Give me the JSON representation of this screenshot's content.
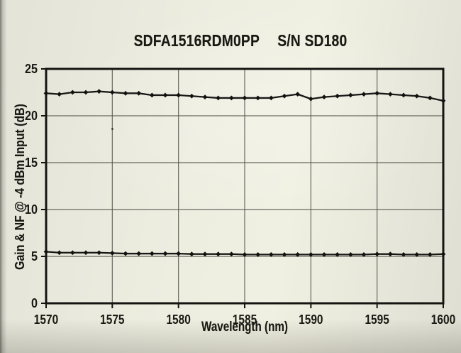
{
  "colors": {
    "paper": "#ebebdf",
    "ink": "#1b1813",
    "grid": "#55514a",
    "frame": "#161310",
    "line": "#1b1916",
    "marker": "#131110"
  },
  "chart_data": {
    "type": "line",
    "title": "SDFA1516RDM0PP",
    "serial": "S/N SD180",
    "xlabel": "Wavelength (nm)",
    "ylabel": "Gain & NF @ -4 dBm Input (dB)",
    "xlim": [
      1570,
      1600
    ],
    "ylim": [
      0,
      25
    ],
    "x_ticks": [
      1570,
      1575,
      1580,
      1585,
      1590,
      1595,
      1600
    ],
    "y_ticks": [
      0,
      5,
      10,
      15,
      20,
      25
    ],
    "grid": "on",
    "legend": "none",
    "marker": "diamond",
    "x": [
      1570,
      1571,
      1572,
      1573,
      1574,
      1575,
      1576,
      1577,
      1578,
      1579,
      1580,
      1581,
      1582,
      1583,
      1584,
      1585,
      1586,
      1587,
      1588,
      1589,
      1590,
      1591,
      1592,
      1593,
      1594,
      1595,
      1596,
      1597,
      1598,
      1599,
      1600
    ],
    "series": [
      {
        "name": "Gain",
        "values": [
          22.4,
          22.3,
          22.5,
          22.5,
          22.6,
          22.5,
          22.4,
          22.4,
          22.2,
          22.2,
          22.2,
          22.1,
          22.0,
          21.9,
          21.9,
          21.9,
          21.9,
          21.9,
          22.1,
          22.3,
          21.8,
          22.0,
          22.1,
          22.2,
          22.3,
          22.4,
          22.3,
          22.2,
          22.1,
          21.9,
          21.6
        ]
      },
      {
        "name": "NF",
        "values": [
          5.5,
          5.4,
          5.4,
          5.4,
          5.4,
          5.35,
          5.3,
          5.3,
          5.3,
          5.3,
          5.3,
          5.25,
          5.25,
          5.25,
          5.25,
          5.2,
          5.2,
          5.2,
          5.2,
          5.2,
          5.2,
          5.2,
          5.2,
          5.2,
          5.2,
          5.25,
          5.25,
          5.2,
          5.2,
          5.2,
          5.25
        ]
      }
    ]
  }
}
